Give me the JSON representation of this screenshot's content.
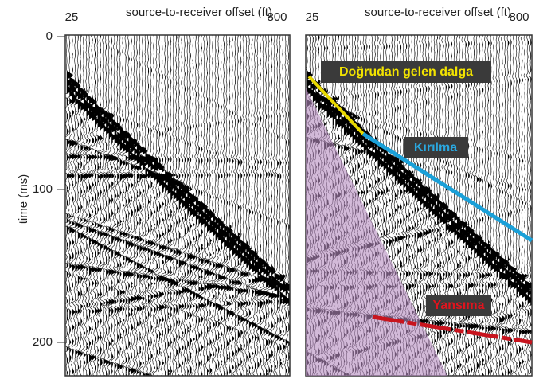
{
  "panels": [
    {
      "x_label": "source-to-receiver offset (ft)",
      "x_ticks": [
        "25",
        "800"
      ]
    },
    {
      "x_label": "source-to-receiver offset (ft)",
      "x_ticks": [
        "25",
        "800"
      ]
    }
  ],
  "y_label": "time (ms)",
  "y_ticks": [
    "0",
    "100",
    "200"
  ],
  "annotations": {
    "direct": "Doğrudan gelen dalga",
    "refraction": "Kırılma",
    "reflection": "Yansıma"
  }
}
